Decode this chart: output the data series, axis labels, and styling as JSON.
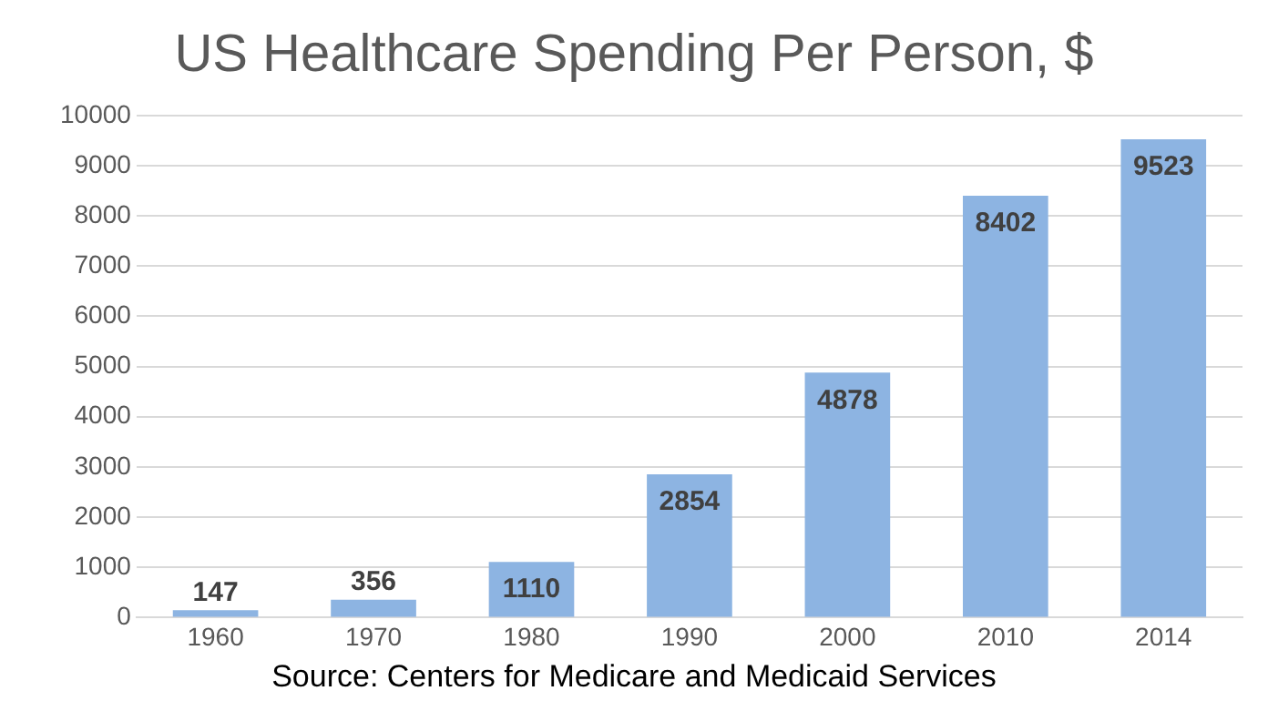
{
  "chart_data": {
    "type": "bar",
    "title": "US Healthcare Spending Per Person, $",
    "categories": [
      "1960",
      "1970",
      "1980",
      "1990",
      "2000",
      "2010",
      "2014"
    ],
    "values": [
      147,
      356,
      1110,
      2854,
      4878,
      8402,
      9523
    ],
    "color": "#8db4e2",
    "ylim": [
      0,
      10000
    ],
    "yticks": [
      0,
      1000,
      2000,
      3000,
      4000,
      5000,
      6000,
      7000,
      8000,
      9000,
      10000
    ],
    "grid": "y",
    "legend": false,
    "data_labels": true,
    "annotations": [
      "Source: Centers for Medicare and Medicaid Services"
    ]
  }
}
